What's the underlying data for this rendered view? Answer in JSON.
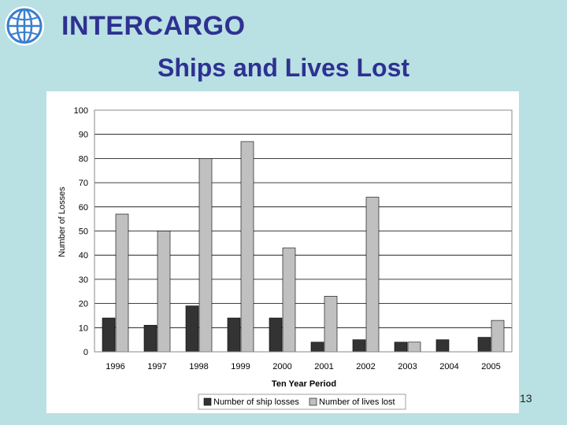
{
  "header": {
    "brand": "INTERCARGO",
    "logo_icon": "globe-laurel-logo-icon",
    "title": "Ships and Lives Lost"
  },
  "footer": {
    "page_number": "13"
  },
  "chart_data": {
    "type": "bar",
    "title": "",
    "xlabel": "Ten Year Period",
    "ylabel": "Number of Losses",
    "ylim": [
      0,
      100
    ],
    "yticks": [
      0,
      10,
      20,
      30,
      40,
      50,
      60,
      70,
      80,
      90,
      100
    ],
    "grid": true,
    "legend_position": "bottom",
    "categories": [
      "1996",
      "1997",
      "1998",
      "1999",
      "2000",
      "2001",
      "2002",
      "2003",
      "2004",
      "2005"
    ],
    "series": [
      {
        "name": "Number of ship losses",
        "color": "#333333",
        "values": [
          14,
          11,
          19,
          14,
          14,
          4,
          5,
          4,
          5,
          6
        ]
      },
      {
        "name": "Number of lives lost",
        "color": "#c0c0c0",
        "values": [
          57,
          50,
          80,
          87,
          43,
          23,
          64,
          4,
          0,
          13
        ]
      }
    ]
  }
}
